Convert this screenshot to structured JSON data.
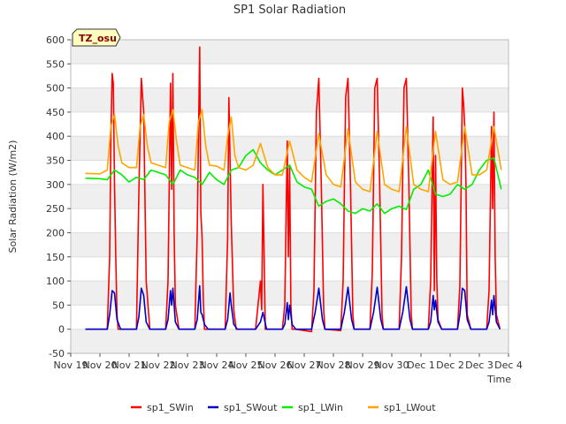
{
  "chart_data": {
    "type": "line",
    "title": "SP1 Solar Radiation",
    "xlabel": "Time",
    "ylabel": "Solar Radiation (W/m2)",
    "site_badge": "TZ_osu",
    "ylim": [
      -50,
      600
    ],
    "y_ticks": [
      -50,
      0,
      50,
      100,
      150,
      200,
      250,
      300,
      350,
      400,
      450,
      500,
      550,
      600
    ],
    "xlim_days": [
      0,
      15
    ],
    "x_tick_labels": [
      "Nov 19",
      "Nov 20",
      "Nov 21",
      "Nov 22",
      "Nov 23",
      "Nov 24",
      "Nov 25",
      "Nov 26",
      "Nov 27",
      "Nov 28",
      "Nov 29",
      "Nov 30",
      "Dec 1",
      "Dec 2",
      "Dec 3",
      "Dec 4"
    ],
    "legend_position": "bottom",
    "grid": true,
    "series": [
      {
        "name": "sp1_SWin",
        "color": "#ff0000",
        "x": [
          "Nov 19 12:00",
          "Nov 20 06:00",
          "Nov 20 08:00",
          "Nov 20 09:00",
          "Nov 20 10:00",
          "Nov 20 11:00",
          "Nov 20 12:00",
          "Nov 20 13:00",
          "Nov 20 14:00",
          "Nov 20 15:00",
          "Nov 20 17:00",
          "Nov 21 06:00",
          "Nov 21 08:00",
          "Nov 21 10:00",
          "Nov 21 12:00",
          "Nov 21 14:00",
          "Nov 21 17:00",
          "Nov 22 06:00",
          "Nov 22 08:00",
          "Nov 22 10:00",
          "Nov 22 11:00",
          "Nov 22 12:00",
          "Nov 22 13:00",
          "Nov 22 14:00",
          "Nov 22 17:00",
          "Nov 23 06:00",
          "Nov 23 08:00",
          "Nov 23 10:00",
          "Nov 23 11:00",
          "Nov 23 12:00",
          "Nov 23 13:00",
          "Nov 23 14:00",
          "Nov 23 17:00",
          "Nov 24 07:00",
          "Nov 24 09:00",
          "Nov 24 10:00",
          "Nov 24 12:00",
          "Nov 24 14:00",
          "Nov 24 16:00",
          "Nov 24 17:00",
          "Nov 25 08:00",
          "Nov 25 12:00",
          "Nov 25 13:00",
          "Nov 25 14:00",
          "Nov 25 16:00",
          "Nov 25 17:00",
          "Nov 26 06:00",
          "Nov 26 08:00",
          "Nov 26 10:00",
          "Nov 26 11:00",
          "Nov 26 12:00",
          "Nov 26 13:00",
          "Nov 26 14:00",
          "Nov 26 17:00",
          "Nov 27 06:00",
          "Nov 27 08:00",
          "Nov 27 10:00",
          "Nov 27 12:00",
          "Nov 27 14:00",
          "Nov 27 16:00",
          "Nov 27 17:00",
          "Nov 28 06:00",
          "Nov 28 08:00",
          "Nov 28 10:00",
          "Nov 28 12:00",
          "Nov 28 14:00",
          "Nov 28 16:00",
          "Nov 28 17:00",
          "Nov 29 06:00",
          "Nov 29 08:00",
          "Nov 29 10:00",
          "Nov 29 12:00",
          "Nov 29 14:00",
          "Nov 29 16:00",
          "Nov 29 17:00",
          "Nov 30 06:00",
          "Nov 30 08:00",
          "Nov 30 10:00",
          "Nov 30 12:00",
          "Nov 30 14:00",
          "Nov 30 16:00",
          "Nov 30 17:00",
          "Dec 1 06:00",
          "Dec 1 08:00",
          "Dec 1 10:00",
          "Dec 1 11:00",
          "Dec 1 12:00",
          "Dec 1 13:00",
          "Dec 1 14:00",
          "Dec 1 17:00",
          "Dec 2 06:00",
          "Dec 2 08:00",
          "Dec 2 10:00",
          "Dec 2 11:00",
          "Dec 2 12:00",
          "Dec 2 13:00",
          "Dec 2 14:00",
          "Dec 2 17:00",
          "Dec 3 06:00",
          "Dec 3 08:00",
          "Dec 3 10:00",
          "Dec 3 11:00",
          "Dec 3 12:00",
          "Dec 3 13:00",
          "Dec 3 14:00",
          "Dec 3 17:00"
        ],
        "y": [
          0,
          0,
          150,
          400,
          530,
          510,
          300,
          150,
          30,
          0,
          0,
          0,
          280,
          520,
          450,
          100,
          0,
          0,
          100,
          510,
          290,
          530,
          200,
          50,
          0,
          0,
          200,
          585,
          240,
          190,
          60,
          0,
          0,
          0,
          190,
          480,
          220,
          40,
          0,
          0,
          0,
          100,
          40,
          300,
          0,
          0,
          0,
          50,
          390,
          150,
          340,
          50,
          0,
          0,
          -5,
          80,
          450,
          520,
          300,
          40,
          0,
          -3,
          100,
          480,
          520,
          300,
          30,
          0,
          0,
          120,
          500,
          520,
          300,
          30,
          0,
          0,
          150,
          500,
          520,
          300,
          30,
          0,
          0,
          100,
          440,
          80,
          360,
          100,
          20,
          0,
          0,
          90,
          500,
          470,
          420,
          300,
          30,
          0,
          0,
          80,
          420,
          250,
          450,
          150,
          30,
          0
        ]
      },
      {
        "name": "sp1_SWout",
        "color": "#0000cc",
        "x": [
          "Nov 19 12:00",
          "Nov 20 06:00",
          "Nov 20 08:00",
          "Nov 20 10:00",
          "Nov 20 12:00",
          "Nov 20 14:00",
          "Nov 20 17:00",
          "Nov 21 06:00",
          "Nov 21 08:00",
          "Nov 21 10:00",
          "Nov 21 12:00",
          "Nov 21 14:00",
          "Nov 21 17:00",
          "Nov 22 06:00",
          "Nov 22 08:00",
          "Nov 22 10:00",
          "Nov 22 11:00",
          "Nov 22 12:00",
          "Nov 22 14:00",
          "Nov 22 17:00",
          "Nov 23 06:00",
          "Nov 23 08:00",
          "Nov 23 10:00",
          "Nov 23 11:00",
          "Nov 23 12:00",
          "Nov 23 14:00",
          "Nov 23 17:00",
          "Nov 24 07:00",
          "Nov 24 09:00",
          "Nov 24 11:00",
          "Nov 24 12:00",
          "Nov 24 14:00",
          "Nov 24 17:00",
          "Nov 25 08:00",
          "Nov 25 12:00",
          "Nov 25 14:00",
          "Nov 25 17:00",
          "Nov 26 06:00",
          "Nov 26 08:00",
          "Nov 26 10:00",
          "Nov 26 11:00",
          "Nov 26 12:00",
          "Nov 26 14:00",
          "Nov 26 17:00",
          "Nov 27 06:00",
          "Nov 27 09:00",
          "Nov 27 12:00",
          "Nov 27 15:00",
          "Nov 27 17:00",
          "Nov 28 06:00",
          "Nov 28 09:00",
          "Nov 28 12:00",
          "Nov 28 15:00",
          "Nov 28 17:00",
          "Nov 29 06:00",
          "Nov 29 09:00",
          "Nov 29 12:00",
          "Nov 29 15:00",
          "Nov 29 17:00",
          "Nov 30 06:00",
          "Nov 30 09:00",
          "Nov 30 12:00",
          "Nov 30 15:00",
          "Nov 30 17:00",
          "Dec 1 06:00",
          "Dec 1 08:00",
          "Dec 1 10:00",
          "Dec 1 11:00",
          "Dec 1 12:00",
          "Dec 1 14:00",
          "Dec 1 17:00",
          "Dec 2 06:00",
          "Dec 2 08:00",
          "Dec 2 10:00",
          "Dec 2 12:00",
          "Dec 2 14:00",
          "Dec 2 17:00",
          "Dec 3 06:00",
          "Dec 3 08:00",
          "Dec 3 10:00",
          "Dec 3 11:00",
          "Dec 3 12:00",
          "Dec 3 14:00",
          "Dec 3 17:00"
        ],
        "y": [
          0,
          0,
          30,
          80,
          75,
          20,
          0,
          0,
          25,
          85,
          70,
          15,
          0,
          0,
          20,
          80,
          50,
          85,
          15,
          0,
          0,
          20,
          90,
          35,
          30,
          10,
          0,
          0,
          20,
          75,
          50,
          10,
          0,
          0,
          15,
          35,
          0,
          0,
          10,
          55,
          20,
          50,
          10,
          0,
          0,
          35,
          85,
          20,
          0,
          0,
          35,
          87,
          20,
          0,
          0,
          35,
          87,
          20,
          0,
          0,
          35,
          88,
          20,
          0,
          0,
          15,
          70,
          40,
          60,
          15,
          0,
          0,
          30,
          85,
          80,
          20,
          0,
          0,
          15,
          60,
          30,
          70,
          15,
          0
        ]
      },
      {
        "name": "sp1_LWin",
        "color": "#00ee00",
        "x": [
          "Nov 19 12:00",
          "Nov 20 00:00",
          "Nov 20 06:00",
          "Nov 20 12:00",
          "Nov 20 18:00",
          "Nov 21 00:00",
          "Nov 21 06:00",
          "Nov 21 12:00",
          "Nov 21 18:00",
          "Nov 22 00:00",
          "Nov 22 06:00",
          "Nov 22 12:00",
          "Nov 22 18:00",
          "Nov 23 00:00",
          "Nov 23 06:00",
          "Nov 23 12:00",
          "Nov 23 18:00",
          "Nov 24 00:00",
          "Nov 24 06:00",
          "Nov 24 12:00",
          "Nov 24 18:00",
          "Nov 25 00:00",
          "Nov 25 06:00",
          "Nov 25 12:00",
          "Nov 25 18:00",
          "Nov 26 00:00",
          "Nov 26 06:00",
          "Nov 26 12:00",
          "Nov 26 18:00",
          "Nov 27 00:00",
          "Nov 27 06:00",
          "Nov 27 12:00",
          "Nov 27 18:00",
          "Nov 28 00:00",
          "Nov 28 06:00",
          "Nov 28 12:00",
          "Nov 28 18:00",
          "Nov 29 00:00",
          "Nov 29 06:00",
          "Nov 29 12:00",
          "Nov 29 18:00",
          "Nov 30 00:00",
          "Nov 30 06:00",
          "Nov 30 12:00",
          "Nov 30 18:00",
          "Dec 1 00:00",
          "Dec 1 06:00",
          "Dec 1 12:00",
          "Dec 1 18:00",
          "Dec 2 00:00",
          "Dec 2 06:00",
          "Dec 2 12:00",
          "Dec 2 18:00",
          "Dec 3 00:00",
          "Dec 3 06:00",
          "Dec 3 12:00",
          "Dec 3 18:00"
        ],
        "y": [
          313,
          312,
          310,
          330,
          320,
          305,
          315,
          310,
          330,
          325,
          320,
          300,
          330,
          320,
          315,
          300,
          325,
          310,
          300,
          330,
          335,
          360,
          372,
          345,
          330,
          320,
          330,
          340,
          305,
          295,
          290,
          255,
          265,
          270,
          260,
          245,
          240,
          250,
          245,
          260,
          240,
          250,
          255,
          248,
          290,
          300,
          330,
          280,
          275,
          280,
          300,
          290,
          300,
          330,
          350,
          355,
          290
        ]
      },
      {
        "name": "sp1_LWout",
        "color": "#ffa500",
        "x": [
          "Nov 19 12:00",
          "Nov 20 00:00",
          "Nov 20 06:00",
          "Nov 20 09:00",
          "Nov 20 12:00",
          "Nov 20 15:00",
          "Nov 20 18:00",
          "Nov 21 00:00",
          "Nov 21 06:00",
          "Nov 21 09:00",
          "Nov 21 12:00",
          "Nov 21 15:00",
          "Nov 21 18:00",
          "Nov 22 00:00",
          "Nov 22 06:00",
          "Nov 22 09:00",
          "Nov 22 12:00",
          "Nov 22 15:00",
          "Nov 22 18:00",
          "Nov 23 00:00",
          "Nov 23 06:00",
          "Nov 23 09:00",
          "Nov 23 12:00",
          "Nov 23 15:00",
          "Nov 23 18:00",
          "Nov 24 00:00",
          "Nov 24 06:00",
          "Nov 24 09:00",
          "Nov 24 12:00",
          "Nov 24 15:00",
          "Nov 24 18:00",
          "Nov 25 00:00",
          "Nov 25 06:00",
          "Nov 25 12:00",
          "Nov 25 18:00",
          "Nov 26 00:00",
          "Nov 26 06:00",
          "Nov 26 12:00",
          "Nov 26 18:00",
          "Nov 27 00:00",
          "Nov 27 06:00",
          "Nov 27 12:00",
          "Nov 27 18:00",
          "Nov 28 00:00",
          "Nov 28 06:00",
          "Nov 28 12:00",
          "Nov 28 18:00",
          "Nov 29 00:00",
          "Nov 29 06:00",
          "Nov 29 12:00",
          "Nov 29 18:00",
          "Nov 30 00:00",
          "Nov 30 06:00",
          "Nov 30 12:00",
          "Nov 30 18:00",
          "Dec 1 00:00",
          "Dec 1 06:00",
          "Dec 1 12:00",
          "Dec 1 18:00",
          "Dec 2 00:00",
          "Dec 2 06:00",
          "Dec 2 12:00",
          "Dec 2 18:00",
          "Dec 3 00:00",
          "Dec 3 06:00",
          "Dec 3 12:00",
          "Dec 3 18:00"
        ],
        "y": [
          323,
          322,
          330,
          420,
          445,
          380,
          345,
          335,
          335,
          420,
          445,
          380,
          345,
          340,
          335,
          430,
          455,
          390,
          340,
          335,
          330,
          430,
          455,
          380,
          340,
          338,
          330,
          400,
          440,
          360,
          335,
          330,
          340,
          385,
          335,
          320,
          320,
          390,
          330,
          315,
          305,
          405,
          320,
          300,
          295,
          415,
          305,
          290,
          285,
          410,
          300,
          290,
          285,
          420,
          300,
          290,
          285,
          410,
          310,
          300,
          305,
          420,
          320,
          320,
          330,
          420,
          330
        ]
      }
    ]
  }
}
